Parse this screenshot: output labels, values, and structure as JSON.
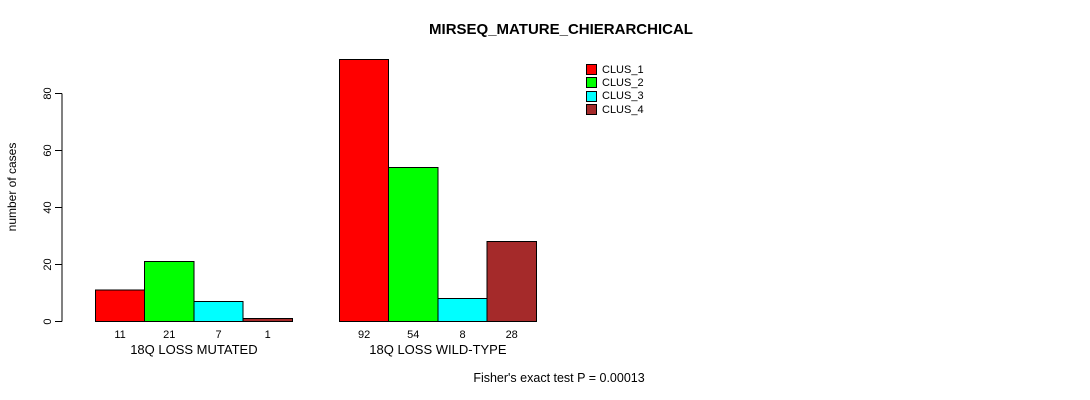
{
  "page": {
    "title": "MIRSEQ_MATURE_CHIERARCHICAL",
    "footnote": "Fisher's exact test P = 0.00013"
  },
  "chart_data": {
    "type": "bar",
    "title": "MIRSEQ_MATURE_CHIERARCHICAL",
    "xlabel": "",
    "ylabel": "number of cases",
    "categories": [
      "18Q LOSS MUTATED",
      "18Q LOSS WILD-TYPE"
    ],
    "series": [
      {
        "name": "CLUS_1",
        "color": "#ff0000",
        "values": [
          11,
          92
        ]
      },
      {
        "name": "CLUS_2",
        "color": "#00ff00",
        "values": [
          21,
          54
        ]
      },
      {
        "name": "CLUS_3",
        "color": "#00ffff",
        "values": [
          7,
          8
        ]
      },
      {
        "name": "CLUS_4",
        "color": "#a52a2a",
        "values": [
          1,
          28
        ]
      }
    ],
    "yticks": [
      0,
      20,
      40,
      60,
      80
    ],
    "ylim": [
      0,
      92
    ],
    "grid": false,
    "legend_position": "top-right",
    "bar_value_labels": true,
    "annotation": "Fisher's exact test P = 0.00013"
  }
}
